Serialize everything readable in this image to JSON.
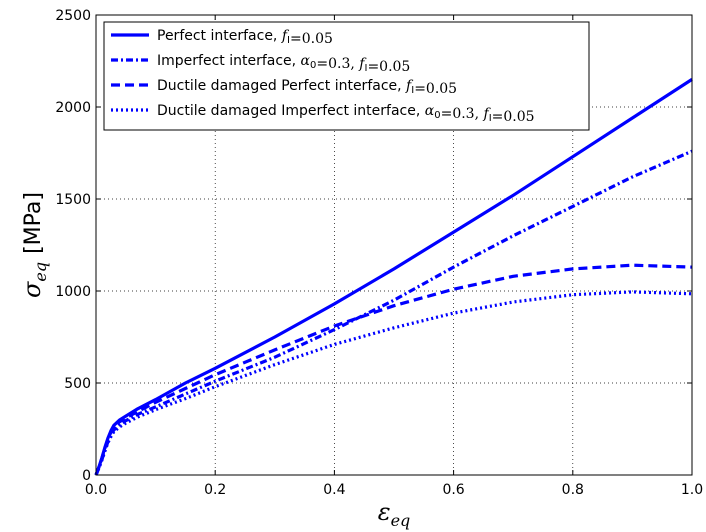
{
  "chart_data": {
    "type": "line",
    "title": "",
    "xlabel": {
      "symbol": "ε",
      "subscript": "eq"
    },
    "ylabel": {
      "symbol": "σ",
      "subscript": "eq",
      "unit": "[MPa]"
    },
    "xlim": [
      0.0,
      1.0
    ],
    "ylim": [
      0,
      2500
    ],
    "x_ticks": [
      "0.0",
      "0.2",
      "0.4",
      "0.6",
      "0.8",
      "1.0"
    ],
    "y_ticks": [
      "0",
      "500",
      "1000",
      "1500",
      "2000",
      "2500"
    ],
    "grid": true,
    "legend_position": "top-left",
    "color": "#0000ff",
    "series": [
      {
        "name": {
          "text": "Perfect interface, ",
          "math": "f_I=0.05"
        },
        "style": "solid",
        "x": [
          0,
          0.005,
          0.01,
          0.015,
          0.02,
          0.025,
          0.03,
          0.04,
          0.05,
          0.07,
          0.1,
          0.15,
          0.2,
          0.3,
          0.4,
          0.5,
          0.6,
          0.7,
          0.8,
          0.9,
          1.0
        ],
        "y": [
          0,
          45,
          95,
          150,
          200,
          240,
          270,
          300,
          320,
          360,
          410,
          500,
          580,
          750,
          930,
          1120,
          1320,
          1520,
          1730,
          1940,
          2150
        ]
      },
      {
        "name": {
          "text": "Imperfect interface, ",
          "math": "α_0=0.3, f_I=0.05"
        },
        "style": "dashdot",
        "x": [
          0,
          0.005,
          0.01,
          0.015,
          0.02,
          0.025,
          0.03,
          0.04,
          0.05,
          0.07,
          0.1,
          0.15,
          0.2,
          0.3,
          0.4,
          0.5,
          0.6,
          0.7,
          0.8,
          0.9,
          1.0
        ],
        "y": [
          0,
          40,
          85,
          135,
          180,
          215,
          245,
          275,
          295,
          330,
          370,
          440,
          510,
          640,
          790,
          950,
          1130,
          1300,
          1460,
          1620,
          1760
        ]
      },
      {
        "name": {
          "text": "Ductile damaged Perfect interface, ",
          "math": "f_I=0.05"
        },
        "style": "dashed",
        "x": [
          0,
          0.005,
          0.01,
          0.015,
          0.02,
          0.025,
          0.03,
          0.04,
          0.05,
          0.07,
          0.1,
          0.15,
          0.2,
          0.3,
          0.4,
          0.5,
          0.6,
          0.7,
          0.8,
          0.9,
          1.0
        ],
        "y": [
          0,
          44,
          92,
          145,
          195,
          232,
          262,
          290,
          310,
          345,
          395,
          470,
          545,
          680,
          810,
          920,
          1010,
          1080,
          1120,
          1140,
          1130
        ]
      },
      {
        "name": {
          "text": "Ductile damaged Imperfect interface, ",
          "math": "α_0=0.3, f_I=0.05"
        },
        "style": "dotted",
        "x": [
          0,
          0.005,
          0.01,
          0.015,
          0.02,
          0.025,
          0.03,
          0.04,
          0.05,
          0.07,
          0.1,
          0.15,
          0.2,
          0.3,
          0.4,
          0.5,
          0.6,
          0.7,
          0.8,
          0.9,
          1.0
        ],
        "y": [
          0,
          38,
          82,
          130,
          175,
          208,
          236,
          262,
          282,
          315,
          355,
          415,
          480,
          600,
          710,
          800,
          880,
          940,
          980,
          995,
          985
        ]
      }
    ]
  }
}
